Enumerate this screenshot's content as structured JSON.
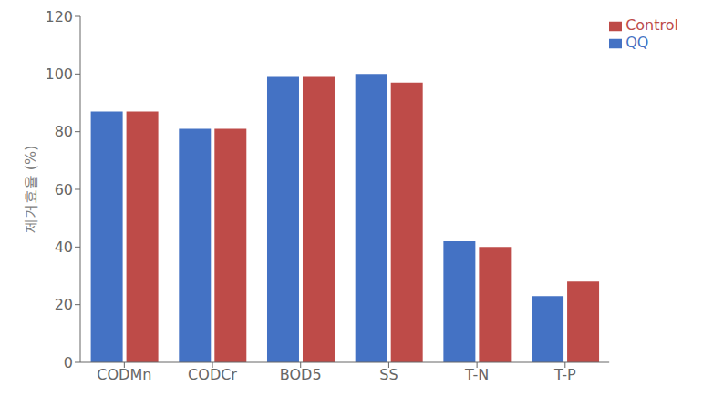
{
  "chart_data": {
    "type": "bar",
    "ylabel": "제거효율 (%)",
    "categories": [
      "CODMn",
      "CODCr",
      "BOD5",
      "SS",
      "T-N",
      "T-P"
    ],
    "series": [
      {
        "name": "QQ",
        "color": "#4472C4",
        "values": [
          87,
          81,
          99,
          100,
          42,
          23
        ]
      },
      {
        "name": "Control",
        "color": "#BE4B48",
        "values": [
          87,
          81,
          99,
          97,
          40,
          28
        ]
      }
    ],
    "ylim": [
      0,
      120
    ],
    "yticks": [
      0,
      20,
      40,
      60,
      80,
      100,
      120
    ],
    "grid": false,
    "legend": "upper right"
  }
}
